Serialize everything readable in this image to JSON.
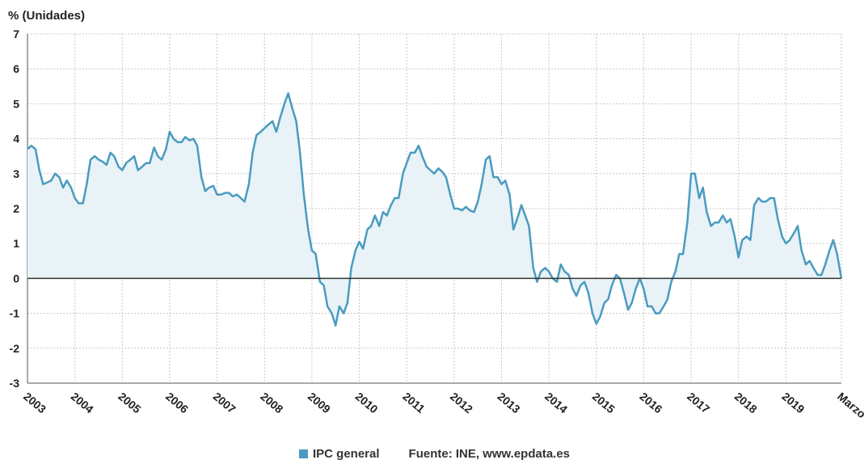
{
  "chart_data": {
    "type": "area",
    "unit_label": "% (Unidades)",
    "ylim": [
      -3,
      7
    ],
    "yticks": [
      -3,
      -2,
      -1,
      0,
      1,
      2,
      3,
      4,
      5,
      6,
      7
    ],
    "xticks": [
      "2003",
      "2004",
      "2005",
      "2006",
      "2007",
      "2008",
      "2009",
      "2010",
      "2011",
      "2012",
      "2013",
      "2014",
      "2015",
      "2016",
      "2017",
      "2018",
      "2019",
      "Marzo"
    ],
    "grid": true,
    "series": [
      {
        "name": "IPC general",
        "color": "#4a9bbf",
        "fill": "#e8f2f7",
        "points": [
          [
            2003.0,
            3.7
          ],
          [
            2003.08,
            3.8
          ],
          [
            2003.17,
            3.7
          ],
          [
            2003.25,
            3.1
          ],
          [
            2003.33,
            2.7
          ],
          [
            2003.42,
            2.75
          ],
          [
            2003.5,
            2.8
          ],
          [
            2003.58,
            3.0
          ],
          [
            2003.67,
            2.9
          ],
          [
            2003.75,
            2.6
          ],
          [
            2003.83,
            2.8
          ],
          [
            2003.92,
            2.6
          ],
          [
            2004.0,
            2.3
          ],
          [
            2004.08,
            2.15
          ],
          [
            2004.17,
            2.15
          ],
          [
            2004.25,
            2.7
          ],
          [
            2004.33,
            3.4
          ],
          [
            2004.42,
            3.5
          ],
          [
            2004.5,
            3.4
          ],
          [
            2004.58,
            3.35
          ],
          [
            2004.67,
            3.25
          ],
          [
            2004.75,
            3.6
          ],
          [
            2004.83,
            3.5
          ],
          [
            2004.92,
            3.2
          ],
          [
            2005.0,
            3.1
          ],
          [
            2005.08,
            3.3
          ],
          [
            2005.17,
            3.4
          ],
          [
            2005.25,
            3.5
          ],
          [
            2005.33,
            3.1
          ],
          [
            2005.42,
            3.2
          ],
          [
            2005.5,
            3.3
          ],
          [
            2005.58,
            3.3
          ],
          [
            2005.67,
            3.75
          ],
          [
            2005.75,
            3.5
          ],
          [
            2005.83,
            3.4
          ],
          [
            2005.92,
            3.7
          ],
          [
            2006.0,
            4.2
          ],
          [
            2006.08,
            4.0
          ],
          [
            2006.17,
            3.9
          ],
          [
            2006.25,
            3.9
          ],
          [
            2006.33,
            4.05
          ],
          [
            2006.42,
            3.95
          ],
          [
            2006.5,
            4.0
          ],
          [
            2006.58,
            3.8
          ],
          [
            2006.67,
            2.9
          ],
          [
            2006.75,
            2.5
          ],
          [
            2006.83,
            2.6
          ],
          [
            2006.92,
            2.65
          ],
          [
            2007.0,
            2.4
          ],
          [
            2007.08,
            2.4
          ],
          [
            2007.17,
            2.45
          ],
          [
            2007.25,
            2.45
          ],
          [
            2007.33,
            2.35
          ],
          [
            2007.42,
            2.4
          ],
          [
            2007.5,
            2.3
          ],
          [
            2007.58,
            2.2
          ],
          [
            2007.67,
            2.7
          ],
          [
            2007.75,
            3.6
          ],
          [
            2007.83,
            4.1
          ],
          [
            2007.92,
            4.2
          ],
          [
            2008.0,
            4.3
          ],
          [
            2008.08,
            4.4
          ],
          [
            2008.17,
            4.5
          ],
          [
            2008.25,
            4.2
          ],
          [
            2008.33,
            4.6
          ],
          [
            2008.42,
            5.0
          ],
          [
            2008.5,
            5.3
          ],
          [
            2008.58,
            4.9
          ],
          [
            2008.67,
            4.5
          ],
          [
            2008.75,
            3.6
          ],
          [
            2008.83,
            2.4
          ],
          [
            2008.92,
            1.4
          ],
          [
            2009.0,
            0.8
          ],
          [
            2009.08,
            0.7
          ],
          [
            2009.17,
            -0.1
          ],
          [
            2009.25,
            -0.2
          ],
          [
            2009.33,
            -0.8
          ],
          [
            2009.42,
            -1.0
          ],
          [
            2009.5,
            -1.35
          ],
          [
            2009.58,
            -0.8
          ],
          [
            2009.67,
            -1.0
          ],
          [
            2009.75,
            -0.7
          ],
          [
            2009.83,
            0.3
          ],
          [
            2009.92,
            0.8
          ],
          [
            2010.0,
            1.05
          ],
          [
            2010.08,
            0.85
          ],
          [
            2010.17,
            1.4
          ],
          [
            2010.25,
            1.5
          ],
          [
            2010.33,
            1.8
          ],
          [
            2010.42,
            1.5
          ],
          [
            2010.5,
            1.9
          ],
          [
            2010.58,
            1.8
          ],
          [
            2010.67,
            2.1
          ],
          [
            2010.75,
            2.3
          ],
          [
            2010.83,
            2.3
          ],
          [
            2010.92,
            3.0
          ],
          [
            2011.0,
            3.3
          ],
          [
            2011.08,
            3.6
          ],
          [
            2011.17,
            3.6
          ],
          [
            2011.25,
            3.8
          ],
          [
            2011.33,
            3.5
          ],
          [
            2011.42,
            3.2
          ],
          [
            2011.5,
            3.1
          ],
          [
            2011.58,
            3.0
          ],
          [
            2011.67,
            3.15
          ],
          [
            2011.75,
            3.05
          ],
          [
            2011.83,
            2.9
          ],
          [
            2011.92,
            2.4
          ],
          [
            2012.0,
            2.0
          ],
          [
            2012.08,
            2.0
          ],
          [
            2012.17,
            1.95
          ],
          [
            2012.25,
            2.05
          ],
          [
            2012.33,
            1.95
          ],
          [
            2012.42,
            1.9
          ],
          [
            2012.5,
            2.2
          ],
          [
            2012.58,
            2.7
          ],
          [
            2012.67,
            3.4
          ],
          [
            2012.75,
            3.5
          ],
          [
            2012.83,
            2.9
          ],
          [
            2012.92,
            2.9
          ],
          [
            2013.0,
            2.7
          ],
          [
            2013.08,
            2.8
          ],
          [
            2013.17,
            2.4
          ],
          [
            2013.25,
            1.4
          ],
          [
            2013.33,
            1.7
          ],
          [
            2013.42,
            2.1
          ],
          [
            2013.5,
            1.8
          ],
          [
            2013.58,
            1.5
          ],
          [
            2013.67,
            0.3
          ],
          [
            2013.75,
            -0.1
          ],
          [
            2013.83,
            0.2
          ],
          [
            2013.92,
            0.3
          ],
          [
            2014.0,
            0.2
          ],
          [
            2014.08,
            0.0
          ],
          [
            2014.17,
            -0.1
          ],
          [
            2014.25,
            0.4
          ],
          [
            2014.33,
            0.2
          ],
          [
            2014.42,
            0.1
          ],
          [
            2014.5,
            -0.3
          ],
          [
            2014.58,
            -0.5
          ],
          [
            2014.67,
            -0.2
          ],
          [
            2014.75,
            -0.1
          ],
          [
            2014.83,
            -0.4
          ],
          [
            2014.92,
            -1.0
          ],
          [
            2015.0,
            -1.3
          ],
          [
            2015.08,
            -1.1
          ],
          [
            2015.17,
            -0.7
          ],
          [
            2015.25,
            -0.6
          ],
          [
            2015.33,
            -0.2
          ],
          [
            2015.42,
            0.1
          ],
          [
            2015.5,
            0.0
          ],
          [
            2015.58,
            -0.4
          ],
          [
            2015.67,
            -0.9
          ],
          [
            2015.75,
            -0.7
          ],
          [
            2015.83,
            -0.3
          ],
          [
            2015.92,
            0.0
          ],
          [
            2016.0,
            -0.3
          ],
          [
            2016.08,
            -0.8
          ],
          [
            2016.17,
            -0.8
          ],
          [
            2016.25,
            -1.0
          ],
          [
            2016.33,
            -1.0
          ],
          [
            2016.42,
            -0.8
          ],
          [
            2016.5,
            -0.6
          ],
          [
            2016.58,
            -0.1
          ],
          [
            2016.67,
            0.2
          ],
          [
            2016.75,
            0.7
          ],
          [
            2016.83,
            0.7
          ],
          [
            2016.92,
            1.6
          ],
          [
            2017.0,
            3.0
          ],
          [
            2017.08,
            3.0
          ],
          [
            2017.17,
            2.3
          ],
          [
            2017.25,
            2.6
          ],
          [
            2017.33,
            1.9
          ],
          [
            2017.42,
            1.5
          ],
          [
            2017.5,
            1.6
          ],
          [
            2017.58,
            1.6
          ],
          [
            2017.67,
            1.8
          ],
          [
            2017.75,
            1.6
          ],
          [
            2017.83,
            1.7
          ],
          [
            2017.92,
            1.2
          ],
          [
            2018.0,
            0.6
          ],
          [
            2018.08,
            1.1
          ],
          [
            2018.17,
            1.2
          ],
          [
            2018.25,
            1.1
          ],
          [
            2018.33,
            2.1
          ],
          [
            2018.42,
            2.3
          ],
          [
            2018.5,
            2.2
          ],
          [
            2018.58,
            2.2
          ],
          [
            2018.67,
            2.3
          ],
          [
            2018.75,
            2.3
          ],
          [
            2018.83,
            1.7
          ],
          [
            2018.92,
            1.2
          ],
          [
            2019.0,
            1.0
          ],
          [
            2019.08,
            1.1
          ],
          [
            2019.17,
            1.3
          ],
          [
            2019.25,
            1.5
          ],
          [
            2019.33,
            0.8
          ],
          [
            2019.42,
            0.4
          ],
          [
            2019.5,
            0.5
          ],
          [
            2019.58,
            0.3
          ],
          [
            2019.67,
            0.1
          ],
          [
            2019.75,
            0.1
          ],
          [
            2019.83,
            0.4
          ],
          [
            2019.92,
            0.8
          ],
          [
            2020.0,
            1.1
          ],
          [
            2020.08,
            0.7
          ],
          [
            2020.17,
            0.0
          ]
        ]
      }
    ],
    "legend": {
      "series_label": "IPC general",
      "source": "Fuente: INE, www.epdata.es"
    }
  }
}
